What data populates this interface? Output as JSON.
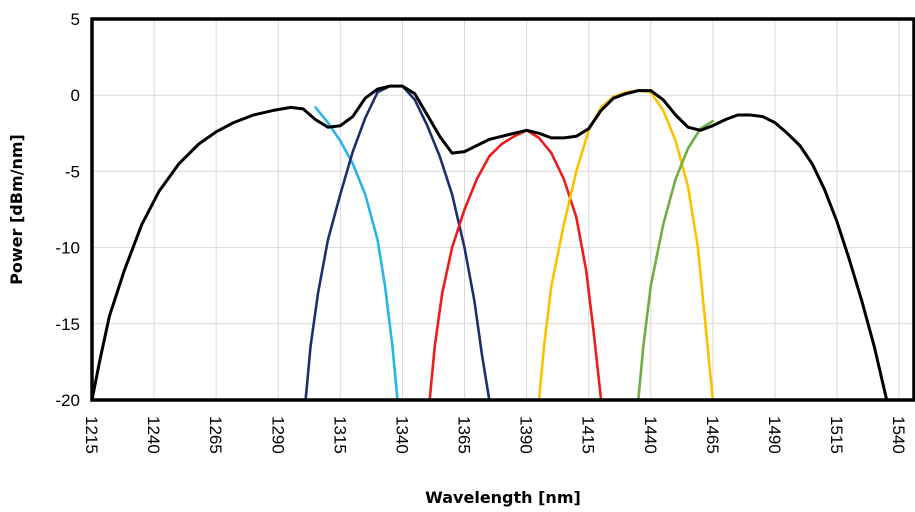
{
  "chart_data": {
    "type": "line",
    "xlabel": "Wavelength [nm]",
    "ylabel": "Power [dBm/nm]",
    "xlim": [
      1215,
      1546
    ],
    "ylim": [
      -20,
      5
    ],
    "xticks": [
      1215,
      1240,
      1265,
      1290,
      1315,
      1340,
      1365,
      1390,
      1415,
      1440,
      1465,
      1490,
      1515,
      1540
    ],
    "yticks": [
      5,
      0,
      -5,
      -10,
      -15,
      -20
    ],
    "grid": true,
    "series": [
      {
        "color": "#000000",
        "x": [
          1215,
          1218,
          1222,
          1228,
          1235,
          1242,
          1250,
          1258,
          1265,
          1272,
          1280,
          1288,
          1295,
          1300,
          1305,
          1310,
          1315,
          1320,
          1325,
          1330,
          1335,
          1340,
          1345,
          1350,
          1355,
          1360,
          1365,
          1370,
          1375,
          1380,
          1385,
          1390,
          1395,
          1400,
          1405,
          1410,
          1415,
          1420,
          1425,
          1430,
          1435,
          1440,
          1445,
          1450,
          1455,
          1460,
          1465,
          1470,
          1475,
          1480,
          1485,
          1490,
          1495,
          1500,
          1505,
          1510,
          1515,
          1520,
          1525,
          1530,
          1535,
          1540
        ],
        "values": [
          -20,
          -17.5,
          -14.5,
          -11.5,
          -8.5,
          -6.3,
          -4.5,
          -3.2,
          -2.4,
          -1.8,
          -1.3,
          -1.0,
          -0.8,
          -0.9,
          -1.6,
          -2.1,
          -2.0,
          -1.4,
          -0.2,
          0.4,
          0.6,
          0.6,
          0.1,
          -1.3,
          -2.7,
          -3.8,
          -3.7,
          -3.3,
          -2.9,
          -2.7,
          -2.5,
          -2.3,
          -2.5,
          -2.8,
          -2.8,
          -2.7,
          -2.2,
          -1.0,
          -0.2,
          0.1,
          0.3,
          0.3,
          -0.3,
          -1.3,
          -2.1,
          -2.3,
          -2.0,
          -1.6,
          -1.3,
          -1.3,
          -1.4,
          -1.8,
          -2.5,
          -3.3,
          -4.5,
          -6.2,
          -8.3,
          -10.8,
          -13.5,
          -16.5,
          -20,
          -20
        ]
      },
      {
        "color": "#29b5e8",
        "x": [
          1305,
          1310,
          1315,
          1320,
          1325,
          1330,
          1333,
          1336,
          1338
        ],
        "values": [
          -0.8,
          -1.8,
          -3.0,
          -4.5,
          -6.5,
          -9.5,
          -12.5,
          -16.5,
          -20
        ]
      },
      {
        "color": "#1f2f6e",
        "x": [
          1301,
          1303,
          1306,
          1310,
          1315,
          1320,
          1325,
          1330,
          1335,
          1340,
          1345,
          1350,
          1355,
          1360,
          1365,
          1369,
          1372,
          1375
        ],
        "values": [
          -20,
          -16.5,
          -13,
          -9.5,
          -6.5,
          -3.7,
          -1.5,
          0.2,
          0.6,
          0.6,
          -0.3,
          -2.0,
          -4.0,
          -6.5,
          -10.0,
          -13.5,
          -17.0,
          -20
        ]
      },
      {
        "color": "#ee1c1c",
        "x": [
          1351,
          1353,
          1356,
          1360,
          1365,
          1370,
          1375,
          1380,
          1385,
          1390,
          1395,
          1400,
          1405,
          1410,
          1414,
          1417,
          1420
        ],
        "values": [
          -20,
          -16.5,
          -13,
          -10,
          -7.5,
          -5.5,
          -4.0,
          -3.2,
          -2.7,
          -2.3,
          -2.8,
          -3.8,
          -5.5,
          -8.0,
          -11.5,
          -15.5,
          -20
        ]
      },
      {
        "color": "#ffc000",
        "x": [
          1395,
          1397,
          1400,
          1405,
          1410,
          1415,
          1420,
          1425,
          1430,
          1435,
          1440,
          1445,
          1450,
          1455,
          1459,
          1462,
          1465
        ],
        "values": [
          -20,
          -16.5,
          -12.5,
          -8.5,
          -5.0,
          -2.3,
          -0.8,
          -0.1,
          0.2,
          0.3,
          0.2,
          -1.0,
          -3.0,
          -6.0,
          -10.0,
          -15.0,
          -20
        ]
      },
      {
        "color": "#70ad47",
        "x": [
          1435,
          1437,
          1440,
          1445,
          1450,
          1455,
          1460,
          1465
        ],
        "values": [
          -20,
          -16.5,
          -12.5,
          -8.5,
          -5.5,
          -3.5,
          -2.2,
          -1.7
        ]
      }
    ]
  }
}
